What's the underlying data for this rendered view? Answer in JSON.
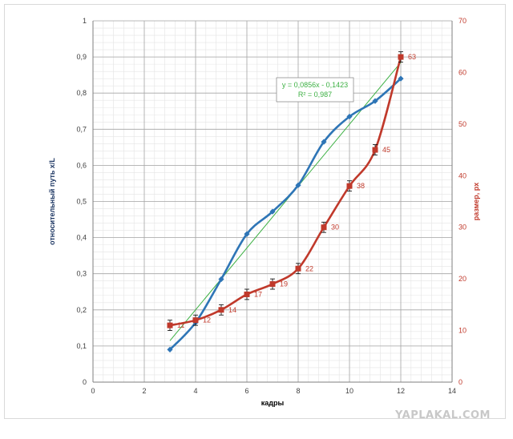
{
  "chart_data": {
    "type": "line",
    "xlabel": "кадры",
    "ylabel_left": "относительный путь x/L",
    "ylabel_right": "размер, px",
    "xlim": [
      0,
      14
    ],
    "x_ticks": [
      0,
      2,
      4,
      6,
      8,
      10,
      12,
      14
    ],
    "ylim_left": [
      0,
      1
    ],
    "y_ticks_left": [
      "0",
      "0,1",
      "0,2",
      "0,3",
      "0,4",
      "0,5",
      "0,6",
      "0,7",
      "0,8",
      "0,9",
      "1"
    ],
    "ylim_right": [
      0,
      70
    ],
    "y_ticks_right": [
      0,
      10,
      20,
      30,
      40,
      50,
      60,
      70
    ],
    "grid": true,
    "series": [
      {
        "axis": "left",
        "color": "#2e75b6",
        "marker": "diamond",
        "x": [
          3,
          4,
          5,
          6,
          7,
          8,
          9,
          10,
          11,
          12
        ],
        "y": [
          0.09,
          0.165,
          0.285,
          0.41,
          0.472,
          0.545,
          0.665,
          0.735,
          0.778,
          0.84
        ]
      },
      {
        "axis": "right",
        "color": "#c0392b",
        "marker": "square",
        "error_bars": true,
        "x": [
          3,
          4,
          5,
          6,
          7,
          8,
          9,
          10,
          11,
          12
        ],
        "y": [
          11,
          12,
          14,
          17,
          19,
          22,
          30,
          38,
          45,
          63
        ],
        "labels": [
          "11",
          "12",
          "14",
          "17",
          "19",
          "22",
          "30",
          "38",
          "45",
          "63"
        ]
      }
    ],
    "trendline": {
      "axis": "left",
      "color": "#3cb043",
      "slope": 0.0856,
      "intercept": -0.1423,
      "x_range": [
        3,
        12
      ],
      "equation": "y = 0,0856x - 0,1423",
      "r_squared": "R² = 0,987"
    }
  },
  "watermark": "YAPLAKAL.COM"
}
